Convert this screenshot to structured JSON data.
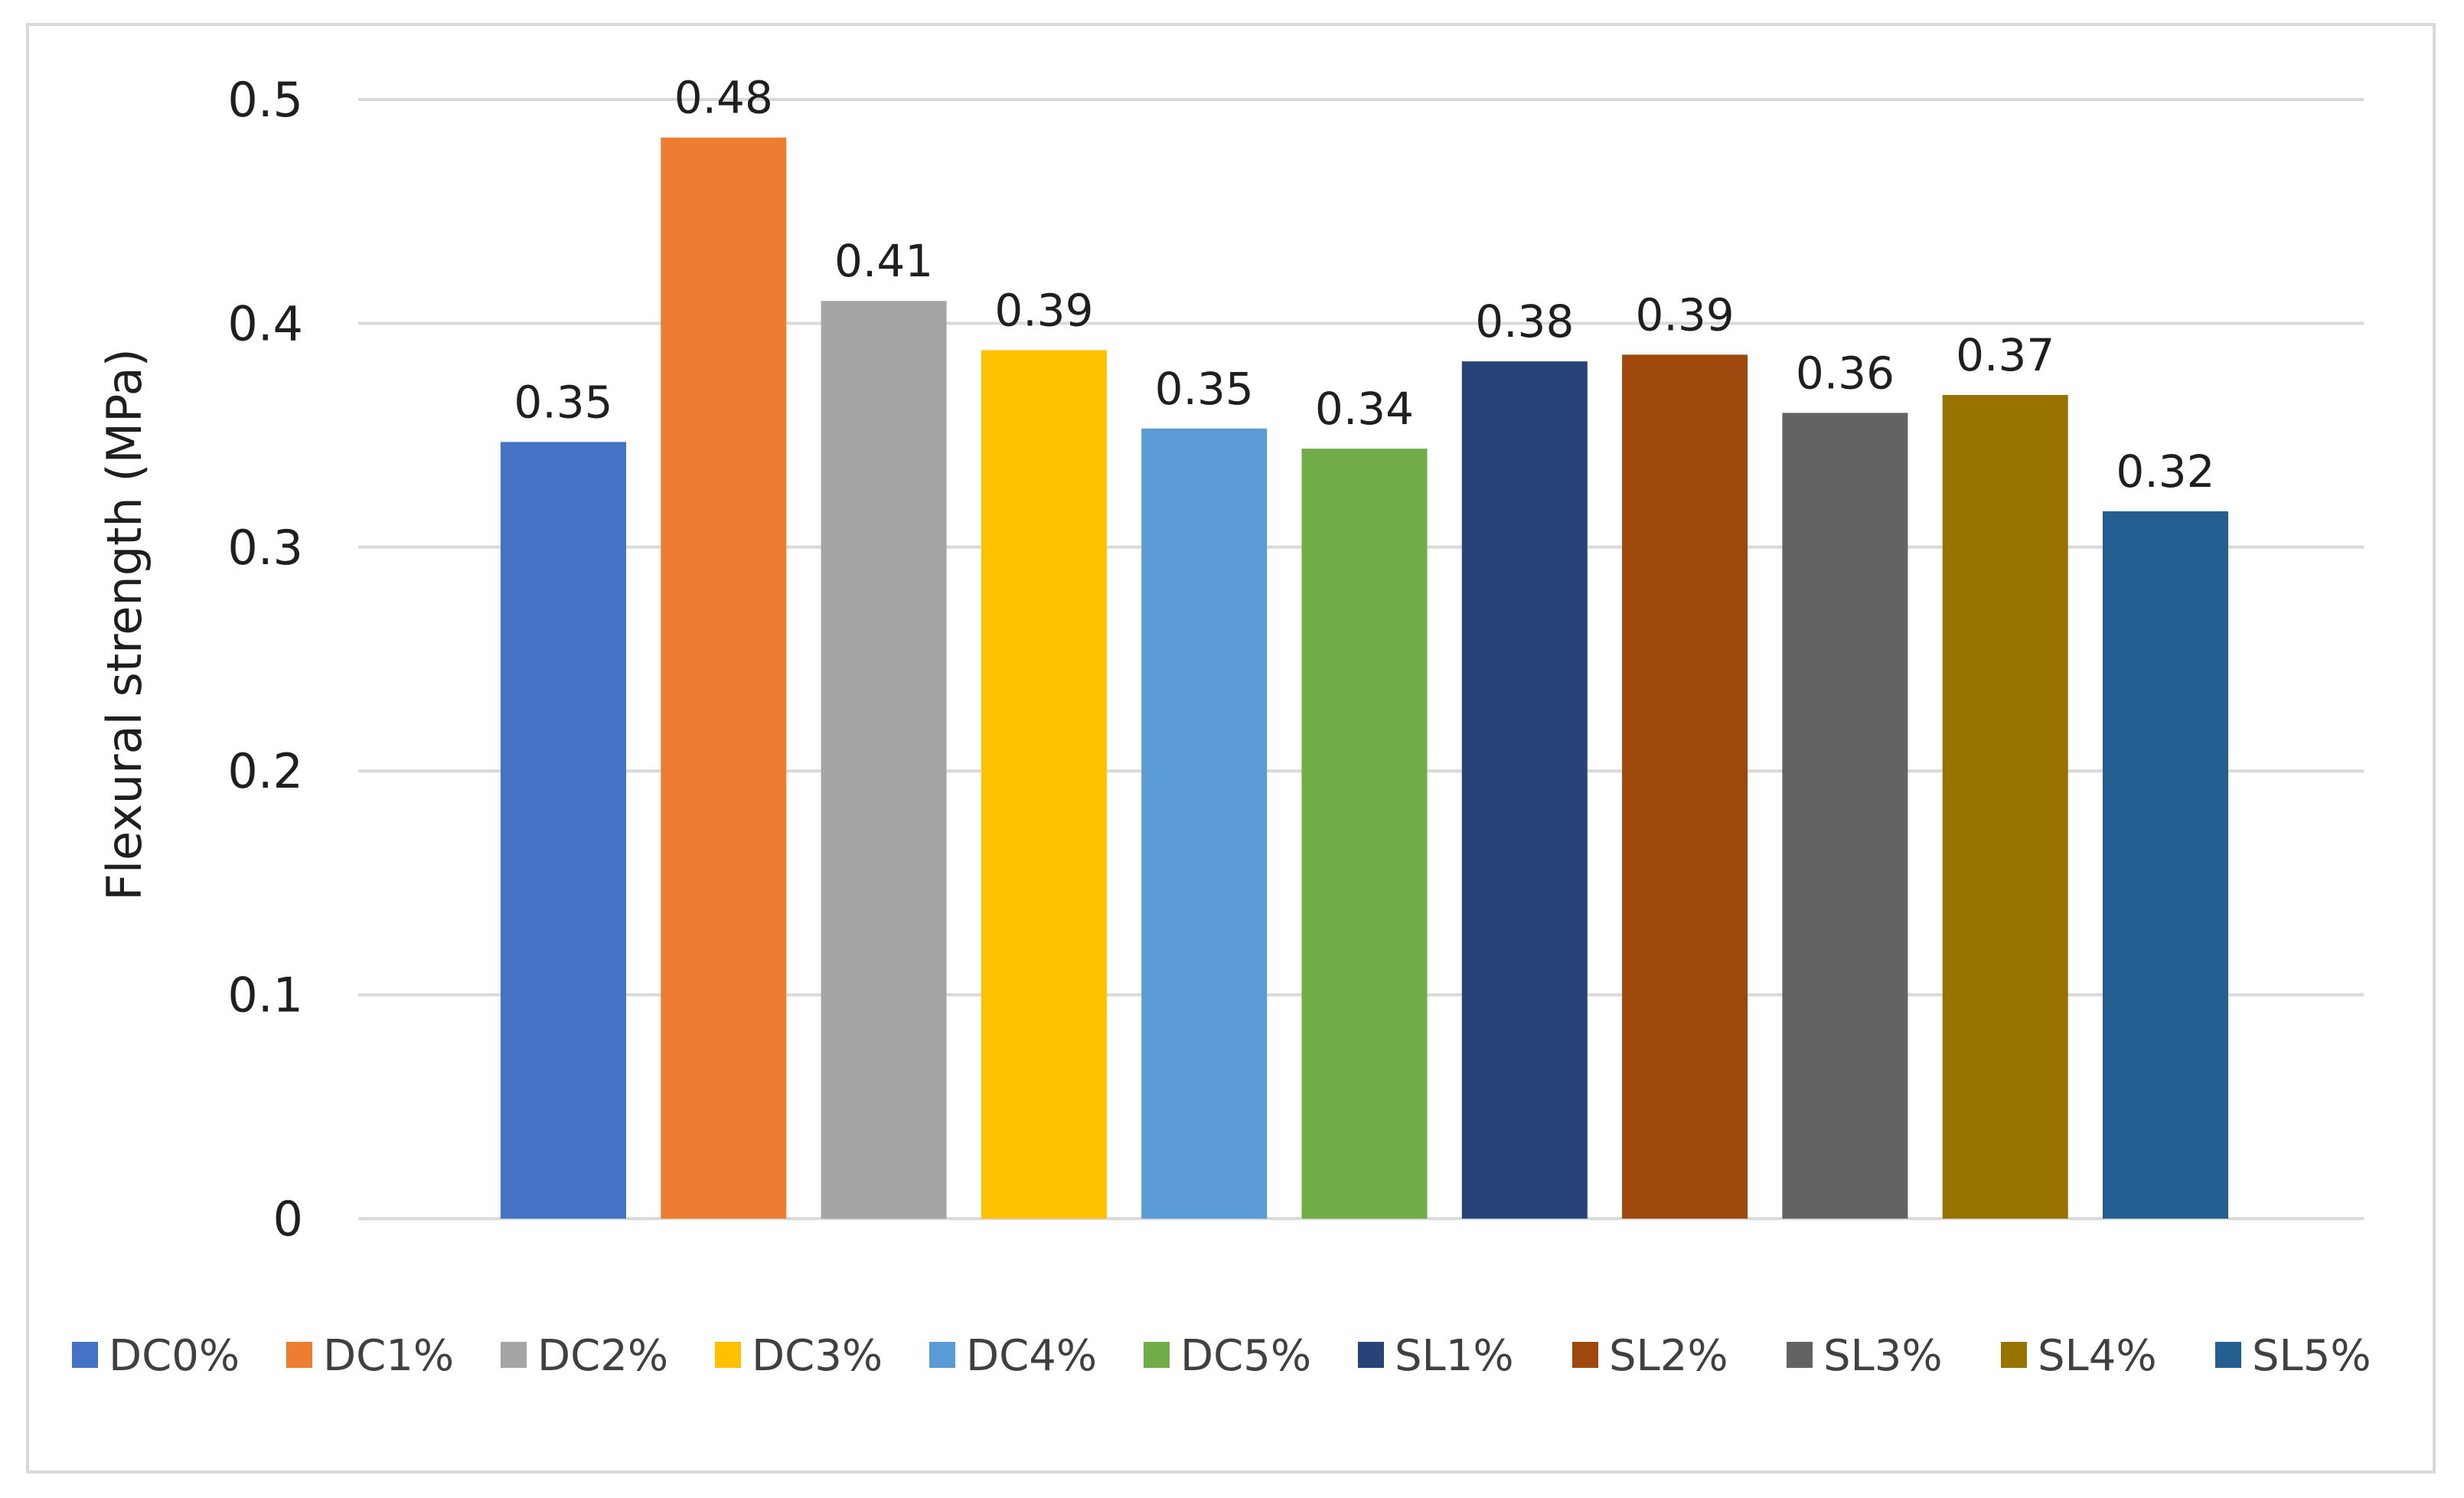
{
  "chart_data": {
    "type": "bar",
    "title": "",
    "xlabel": "",
    "ylabel": "Flexural strength (MPa)",
    "ylim": [
      0,
      0.5
    ],
    "yticks": [
      0,
      0.1,
      0.2,
      0.3,
      0.4,
      0.5
    ],
    "ytick_labels": [
      "0",
      "0.1",
      "0.2",
      "0.3",
      "0.4",
      "0.5"
    ],
    "grid": true,
    "legend_position": "bottom",
    "series": [
      {
        "name": "DC0%",
        "value": 0.347,
        "label": "0.35",
        "color": "#4472C4"
      },
      {
        "name": "DC1%",
        "value": 0.483,
        "label": "0.48",
        "color": "#ED7D31"
      },
      {
        "name": "DC2%",
        "value": 0.41,
        "label": "0.41",
        "color": "#A5A5A5"
      },
      {
        "name": "DC3%",
        "value": 0.388,
        "label": "0.39",
        "color": "#FFC000"
      },
      {
        "name": "DC4%",
        "value": 0.353,
        "label": "0.35",
        "color": "#5B9BD5"
      },
      {
        "name": "DC5%",
        "value": 0.344,
        "label": "0.34",
        "color": "#70AD47"
      },
      {
        "name": "SL1%",
        "value": 0.383,
        "label": "0.38",
        "color": "#264478"
      },
      {
        "name": "SL2%",
        "value": 0.386,
        "label": "0.39",
        "color": "#9E480E"
      },
      {
        "name": "SL3%",
        "value": 0.36,
        "label": "0.36",
        "color": "#636363"
      },
      {
        "name": "SL4%",
        "value": 0.368,
        "label": "0.37",
        "color": "#997300"
      },
      {
        "name": "SL5%",
        "value": 0.316,
        "label": "0.32",
        "color": "#255E91"
      }
    ]
  }
}
